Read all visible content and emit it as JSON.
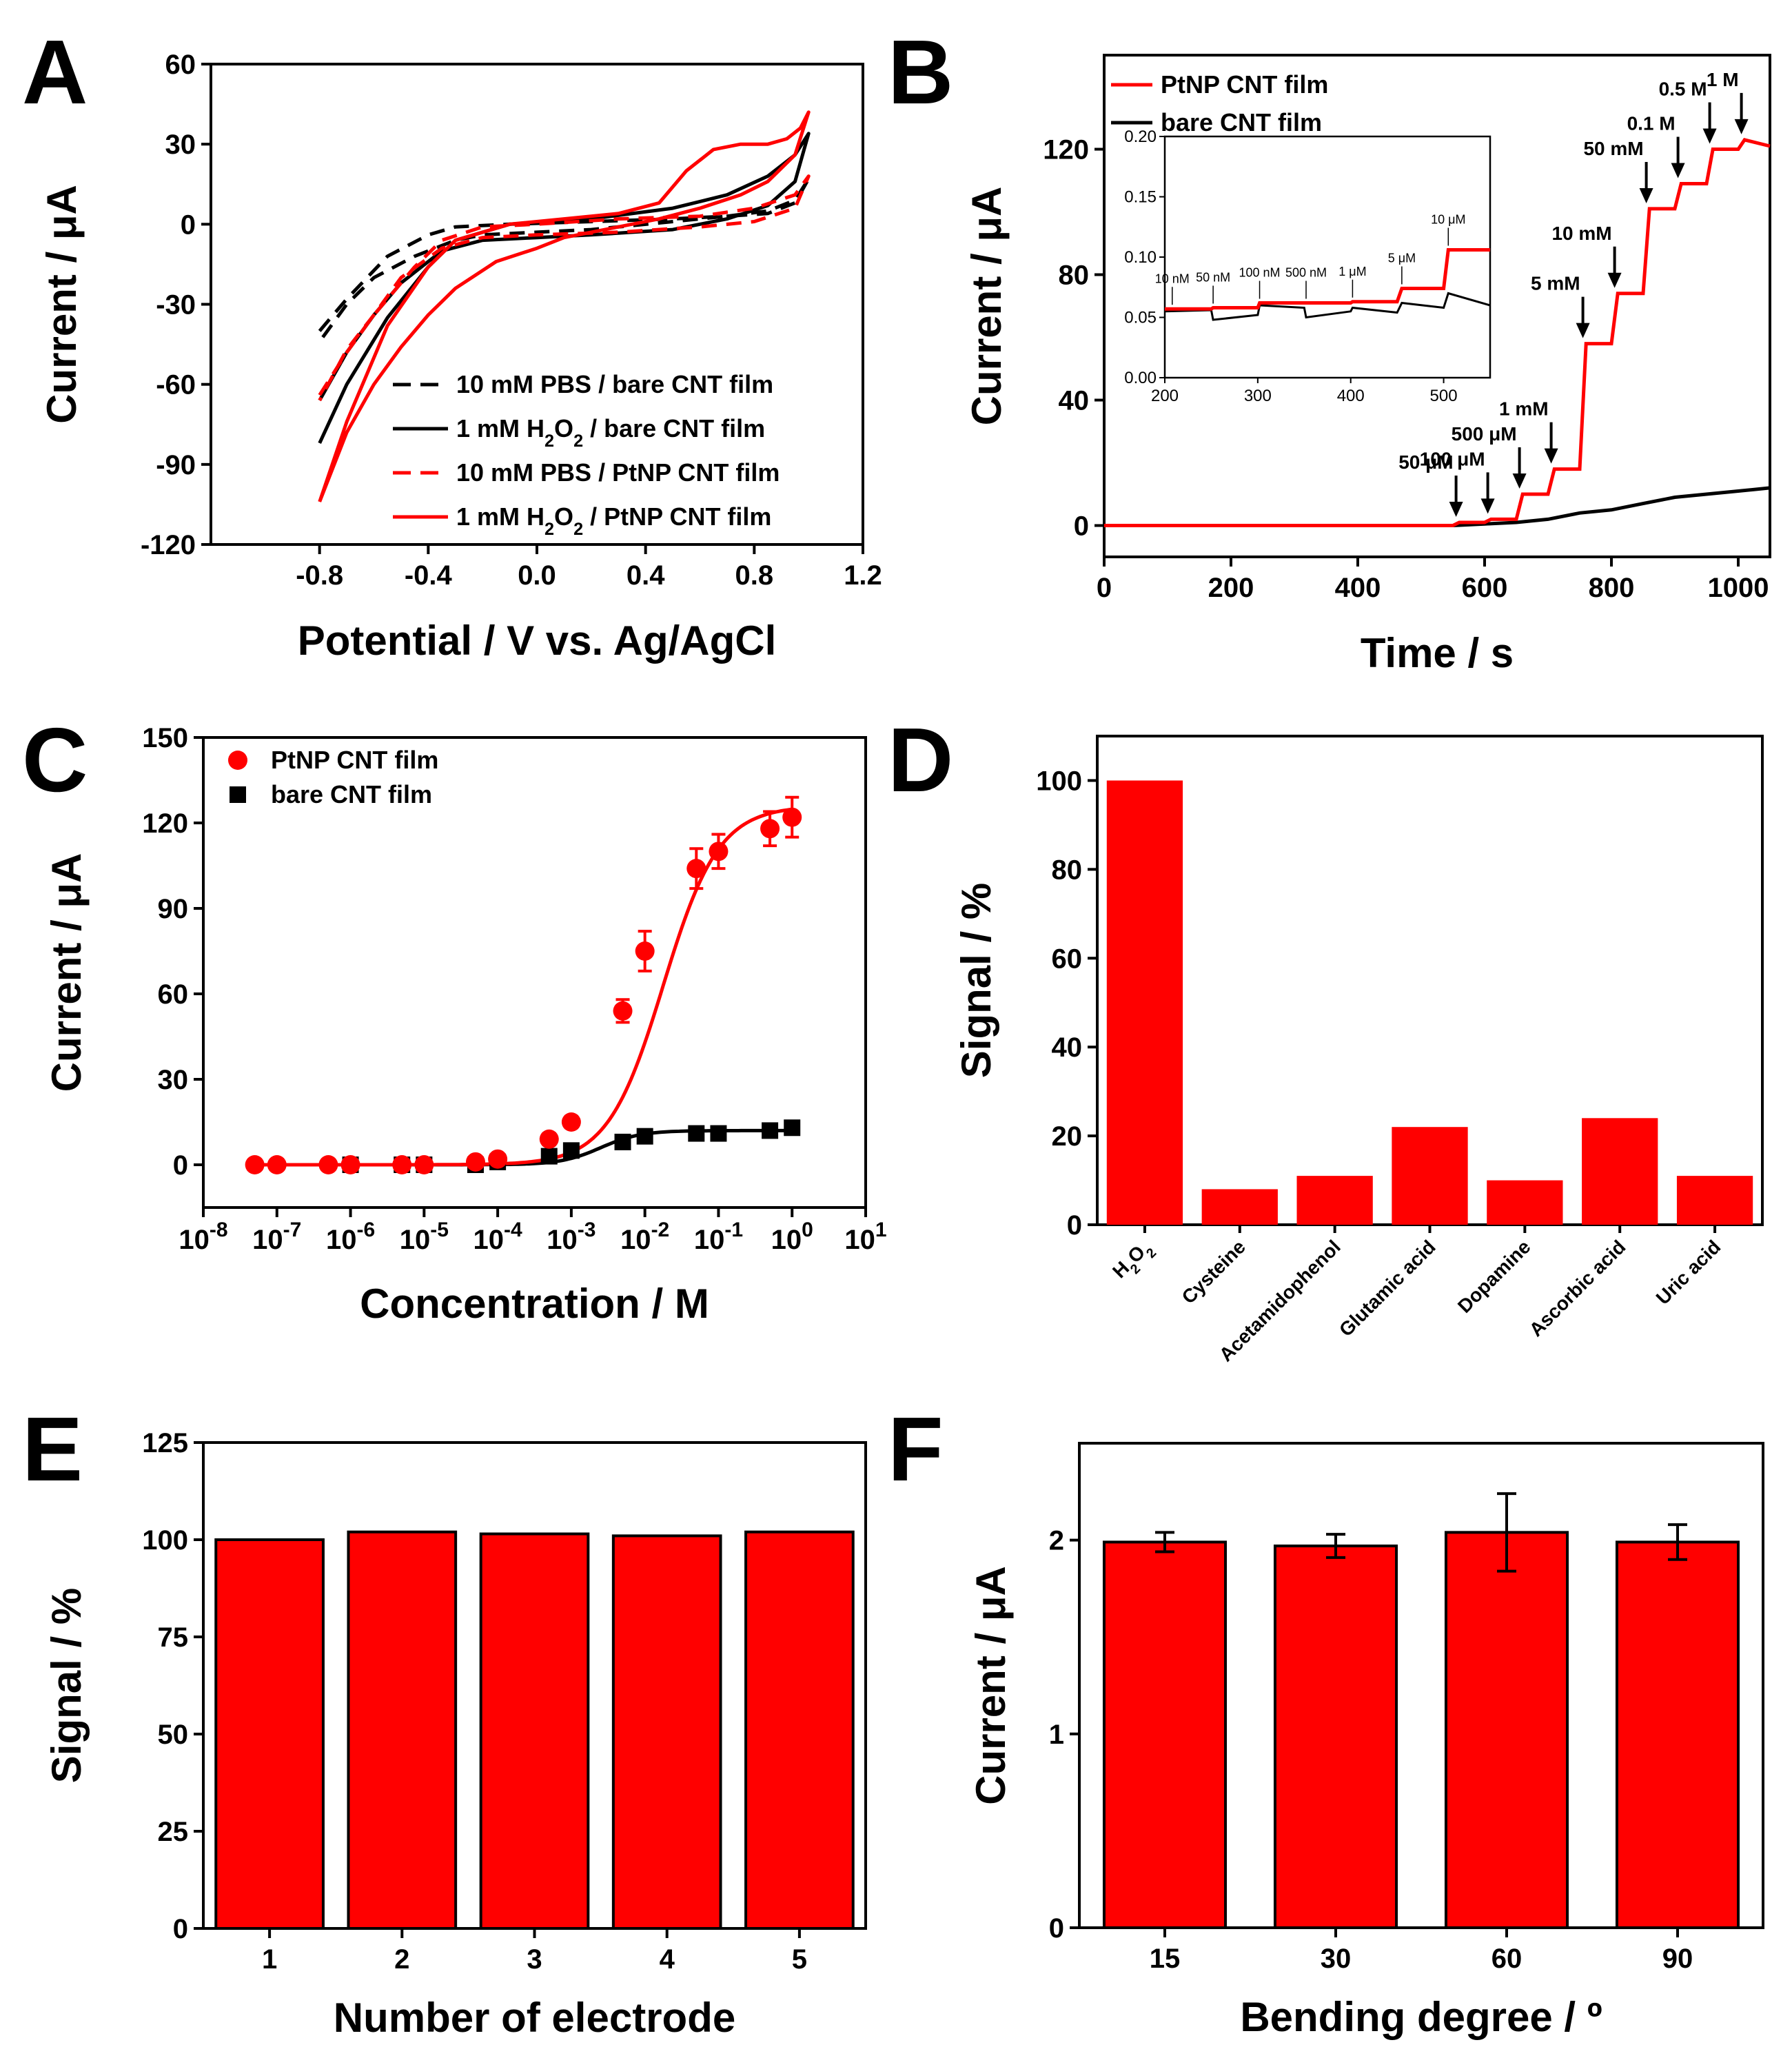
{
  "colors": {
    "red": "#ff0000",
    "black": "#000000"
  },
  "chart_data": [
    {
      "id": "A",
      "type": "line",
      "panel_label": "A",
      "xlabel": "Potential / V vs. Ag/AgCl",
      "ylabel": "Current / μA",
      "xlim": [
        -1.2,
        1.2
      ],
      "ylim": [
        -120,
        60
      ],
      "xticks": [
        -0.8,
        -0.4,
        0.0,
        0.4,
        0.8,
        1.2
      ],
      "xtick_labels": [
        "-0.8",
        "-0.4",
        "0.0",
        "0.4",
        "0.8",
        "1.2"
      ],
      "yticks": [
        60,
        30,
        0,
        -30,
        -60,
        -90,
        -120
      ],
      "ytick_labels": [
        "60",
        "30",
        "0",
        "-30",
        "-60",
        "-90",
        "-120"
      ],
      "legend_position": "bottom-right",
      "series": [
        {
          "name": "10 mM PBS / bare CNT film",
          "color": "#000000",
          "dash": "dashed",
          "x": [
            -0.8,
            -0.7,
            -0.55,
            -0.4,
            -0.3,
            -0.1,
            0.2,
            0.5,
            0.7,
            0.85,
            0.95,
            1.0,
            0.95,
            0.85,
            0.7,
            0.5,
            0.2,
            0.0,
            -0.2,
            -0.3,
            -0.45,
            -0.6,
            -0.7,
            -0.8
          ],
          "y": [
            -40,
            -28,
            -12,
            -4,
            -1,
            0,
            1,
            2,
            3,
            5,
            9,
            17,
            8,
            4,
            3,
            1,
            -2,
            -3,
            -4,
            -6,
            -12,
            -20,
            -30,
            -44
          ]
        },
        {
          "name": "1 mM H₂O₂ / bare CNT film",
          "color": "#000000",
          "dash": "solid",
          "x": [
            -0.8,
            -0.7,
            -0.55,
            -0.4,
            -0.3,
            -0.1,
            0.2,
            0.5,
            0.7,
            0.85,
            0.95,
            1.0,
            0.95,
            0.85,
            0.7,
            0.5,
            0.2,
            0.0,
            -0.2,
            -0.35,
            -0.5,
            -0.6,
            -0.7,
            -0.8
          ],
          "y": [
            -82,
            -60,
            -35,
            -16,
            -6,
            0,
            2,
            6,
            11,
            18,
            26,
            34,
            16,
            7,
            2,
            -2,
            -4,
            -5,
            -6,
            -10,
            -22,
            -34,
            -48,
            -66
          ]
        },
        {
          "name": "10 mM PBS / PtNP CNT film",
          "color": "#ff0000",
          "dash": "dashed",
          "x": [
            -0.8,
            -0.7,
            -0.6,
            -0.45,
            -0.35,
            -0.2,
            0.0,
            0.3,
            0.6,
            0.8,
            0.95,
            1.0,
            0.95,
            0.8,
            0.6,
            0.3,
            0.0,
            -0.2,
            -0.35,
            -0.5,
            -0.6,
            -0.7,
            -0.8
          ],
          "y": [
            -64,
            -48,
            -34,
            -16,
            -6,
            -1,
            0,
            2,
            3,
            6,
            11,
            18,
            6,
            1,
            -1,
            -3,
            -4,
            -5,
            -9,
            -20,
            -34,
            -47,
            -66
          ]
        },
        {
          "name": "1 mM H₂O₂ / PtNP CNT film",
          "color": "#ff0000",
          "dash": "solid",
          "x": [
            -0.8,
            -0.7,
            -0.55,
            -0.4,
            -0.3,
            -0.1,
            0.1,
            0.3,
            0.45,
            0.55,
            0.65,
            0.75,
            0.85,
            0.92,
            0.97,
            1.0,
            0.95,
            0.85,
            0.75,
            0.6,
            0.45,
            0.3,
            0.1,
            0.0,
            -0.15,
            -0.3,
            -0.4,
            -0.5,
            -0.6,
            -0.7,
            -0.8
          ],
          "y": [
            -104,
            -74,
            -38,
            -16,
            -6,
            0,
            2,
            4,
            8,
            20,
            28,
            30,
            30,
            32,
            36,
            42,
            26,
            16,
            11,
            6,
            2,
            -1,
            -5,
            -9,
            -14,
            -24,
            -34,
            -46,
            -60,
            -78,
            -104
          ]
        }
      ]
    },
    {
      "id": "B",
      "type": "line",
      "panel_label": "B",
      "xlabel": "Time / s",
      "ylabel": "Current / μA",
      "xlim": [
        0,
        1050
      ],
      "ylim": [
        -10,
        150
      ],
      "xticks": [
        0,
        200,
        400,
        600,
        800,
        1000
      ],
      "xtick_labels": [
        "0",
        "200",
        "400",
        "600",
        "800",
        "1000"
      ],
      "yticks": [
        0,
        40,
        80,
        120
      ],
      "ytick_labels": [
        "0",
        "40",
        "80",
        "120"
      ],
      "legend_position": "top-left",
      "series": [
        {
          "name": "PtNP CNT film",
          "color": "#ff0000",
          "x": [
            0,
            550,
            560,
            600,
            610,
            650,
            660,
            700,
            710,
            750,
            760,
            800,
            810,
            850,
            860,
            900,
            910,
            950,
            960,
            1000,
            1010,
            1050
          ],
          "y": [
            0,
            0,
            1,
            1,
            2,
            2,
            10,
            10,
            18,
            18,
            58,
            58,
            74,
            74,
            101,
            101,
            109,
            109,
            120,
            120,
            123,
            121
          ]
        },
        {
          "name": "bare CNT film",
          "color": "#000000",
          "x": [
            0,
            550,
            600,
            650,
            700,
            750,
            800,
            850,
            900,
            950,
            1000,
            1050
          ],
          "y": [
            0,
            0,
            0.5,
            1,
            2,
            4,
            5,
            7,
            9,
            10,
            11,
            12
          ]
        }
      ],
      "annotations": [
        {
          "label": "50 μM",
          "x": 555,
          "y": 1
        },
        {
          "label": "100 μM",
          "x": 605,
          "y": 2
        },
        {
          "label": "500 μM",
          "x": 655,
          "y": 10
        },
        {
          "label": "1 mM",
          "x": 705,
          "y": 18
        },
        {
          "label": "5 mM",
          "x": 755,
          "y": 58
        },
        {
          "label": "10 mM",
          "x": 805,
          "y": 74
        },
        {
          "label": "50 mM",
          "x": 855,
          "y": 101
        },
        {
          "label": "0.1 M",
          "x": 905,
          "y": 109
        },
        {
          "label": "0.5 M",
          "x": 955,
          "y": 120
        },
        {
          "label": "1 M",
          "x": 1005,
          "y": 123
        }
      ],
      "inset": {
        "type": "line",
        "xlim": [
          200,
          550
        ],
        "ylim": [
          0,
          0.2
        ],
        "xticks": [
          200,
          300,
          400,
          500
        ],
        "xtick_labels": [
          "200",
          "300",
          "400",
          "500"
        ],
        "yticks": [
          0,
          0.05,
          0.1,
          0.15,
          0.2
        ],
        "ytick_labels": [
          "0.00",
          "0.05",
          "0.10",
          "0.15",
          "0.20"
        ],
        "series": [
          {
            "name": "PtNP CNT film",
            "color": "#ff0000",
            "x": [
              200,
              250,
              252,
              300,
              302,
              350,
              352,
              400,
              402,
              450,
              455,
              500,
              505,
              550
            ],
            "y": [
              0.057,
              0.057,
              0.058,
              0.058,
              0.062,
              0.062,
              0.062,
              0.062,
              0.063,
              0.063,
              0.074,
              0.074,
              0.106,
              0.106
            ]
          },
          {
            "name": "bare CNT film",
            "color": "#000000",
            "x": [
              200,
              250,
              252,
              300,
              302,
              350,
              352,
              400,
              402,
              450,
              455,
              500,
              505,
              550
            ],
            "y": [
              0.055,
              0.056,
              0.048,
              0.052,
              0.06,
              0.058,
              0.05,
              0.055,
              0.058,
              0.054,
              0.062,
              0.058,
              0.07,
              0.06
            ]
          }
        ],
        "annotations": [
          {
            "label": "10 nM",
            "x": 208,
            "y": 0.057
          },
          {
            "label": "50 nM",
            "x": 252,
            "y": 0.058
          },
          {
            "label": "100 nM",
            "x": 302,
            "y": 0.062
          },
          {
            "label": "500 nM",
            "x": 352,
            "y": 0.062
          },
          {
            "label": "1 μM",
            "x": 402,
            "y": 0.063
          },
          {
            "label": "5 μM",
            "x": 455,
            "y": 0.074
          },
          {
            "label": "10 μM",
            "x": 505,
            "y": 0.106
          }
        ]
      }
    },
    {
      "id": "C",
      "type": "scatter",
      "panel_label": "C",
      "xlabel": "Concentration / M",
      "ylabel": "Current / μA",
      "xscale": "log",
      "xlim": [
        1e-08,
        10
      ],
      "ylim": [
        -15,
        150
      ],
      "xtick_exponents": [
        -8,
        -7,
        -6,
        -5,
        -4,
        -3,
        -2,
        -1,
        0,
        1
      ],
      "yticks": [
        0,
        30,
        60,
        90,
        120,
        150
      ],
      "ytick_labels": [
        "0",
        "30",
        "60",
        "90",
        "120",
        "150"
      ],
      "legend_position": "top-left",
      "series": [
        {
          "name": "PtNP CNT film",
          "color": "#ff0000",
          "marker": "circle",
          "x": [
            5e-08,
            1e-07,
            5e-07,
            1e-06,
            5e-06,
            1e-05,
            5e-05,
            0.0001,
            0.0005,
            0.001,
            0.005,
            0.01,
            0.05,
            0.1,
            0.5,
            1
          ],
          "y": [
            0,
            0,
            0,
            0,
            0,
            0,
            1,
            2,
            9,
            15,
            54,
            75,
            104,
            110,
            118,
            122
          ],
          "error": [
            0,
            0,
            0,
            0,
            0,
            0,
            1,
            1,
            2,
            2,
            4,
            7,
            7,
            6,
            6,
            7
          ]
        },
        {
          "name": "bare CNT film",
          "color": "#000000",
          "marker": "square",
          "x": [
            1e-06,
            5e-06,
            1e-05,
            5e-05,
            0.0001,
            0.0005,
            0.001,
            0.005,
            0.01,
            0.05,
            0.1,
            0.5,
            1
          ],
          "y": [
            0,
            0,
            0,
            0,
            1,
            3,
            5,
            8,
            10,
            11,
            11,
            12,
            13
          ],
          "error": [
            0,
            0,
            0,
            0,
            1,
            1,
            1,
            2,
            2,
            2,
            2,
            2,
            2
          ]
        }
      ]
    },
    {
      "id": "D",
      "type": "bar",
      "panel_label": "D",
      "xlabel": "",
      "ylabel": "Signal / %",
      "ylim": [
        0,
        110
      ],
      "yticks": [
        0,
        20,
        40,
        60,
        80,
        100
      ],
      "ytick_labels": [
        "0",
        "20",
        "40",
        "60",
        "80",
        "100"
      ],
      "categories": [
        "H₂O₂",
        "Cysteine",
        "Acetamidophenol",
        "Glutamic acid",
        "Dopamine",
        "Ascorbic acid",
        "Uric acid"
      ],
      "values": [
        100,
        8,
        11,
        22,
        10,
        24,
        11
      ],
      "color": "#ff0000"
    },
    {
      "id": "E",
      "type": "bar",
      "panel_label": "E",
      "xlabel": "Number of electrode",
      "ylabel": "Signal / %",
      "ylim": [
        0,
        125
      ],
      "yticks": [
        0,
        25,
        50,
        75,
        100,
        125
      ],
      "ytick_labels": [
        "0",
        "25",
        "50",
        "75",
        "100",
        "125"
      ],
      "categories": [
        "1",
        "2",
        "3",
        "4",
        "5"
      ],
      "values": [
        100,
        102,
        101.5,
        101,
        102
      ],
      "color": "#ff0000"
    },
    {
      "id": "F",
      "type": "bar",
      "panel_label": "F",
      "xlabel": "Bending degree / º",
      "ylabel": "Current / μA",
      "ylim": [
        0,
        2.5
      ],
      "yticks": [
        0,
        1,
        2
      ],
      "ytick_labels": [
        "0",
        "1",
        "2"
      ],
      "categories": [
        "15",
        "30",
        "60",
        "90"
      ],
      "values": [
        1.99,
        1.97,
        2.04,
        1.99
      ],
      "errors": [
        0.05,
        0.06,
        0.2,
        0.09
      ],
      "color": "#ff0000"
    }
  ]
}
